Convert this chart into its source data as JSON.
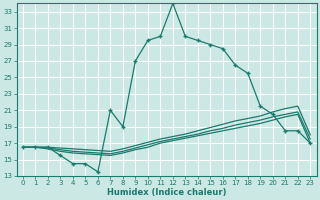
{
  "xlabel": "Humidex (Indice chaleur)",
  "bg_color": "#cce8e4",
  "grid_color": "#ffffff",
  "line_color": "#1a7a6e",
  "xlim": [
    -0.5,
    23.5
  ],
  "ylim": [
    13,
    34
  ],
  "yticks": [
    13,
    15,
    17,
    19,
    21,
    23,
    25,
    27,
    29,
    31,
    33
  ],
  "xticks": [
    0,
    1,
    2,
    3,
    4,
    5,
    6,
    7,
    8,
    9,
    10,
    11,
    12,
    13,
    14,
    15,
    16,
    17,
    18,
    19,
    20,
    21,
    22,
    23
  ],
  "line1_x": [
    0,
    1,
    2,
    3,
    4,
    5,
    6,
    7,
    8,
    9,
    10,
    11,
    12,
    13,
    14,
    15,
    16,
    17,
    18,
    19,
    20,
    21,
    22,
    23
  ],
  "line1_y": [
    16.5,
    16.5,
    16.3,
    16.0,
    15.8,
    15.7,
    15.6,
    15.5,
    15.8,
    16.2,
    16.5,
    17.0,
    17.3,
    17.6,
    17.9,
    18.2,
    18.5,
    18.8,
    19.1,
    19.4,
    19.8,
    20.2,
    20.5,
    17.0
  ],
  "line2_x": [
    0,
    1,
    2,
    3,
    4,
    5,
    6,
    7,
    8,
    9,
    10,
    11,
    12,
    13,
    14,
    15,
    16,
    17,
    18,
    19,
    20,
    21,
    22,
    23
  ],
  "line2_y": [
    16.5,
    16.5,
    16.4,
    16.2,
    16.0,
    15.9,
    15.8,
    15.7,
    16.0,
    16.4,
    16.8,
    17.2,
    17.5,
    17.8,
    18.1,
    18.5,
    18.8,
    19.2,
    19.5,
    19.8,
    20.2,
    20.5,
    20.8,
    17.5
  ],
  "line3_x": [
    0,
    1,
    2,
    3,
    4,
    5,
    6,
    7,
    8,
    9,
    10,
    11,
    12,
    13,
    14,
    15,
    16,
    17,
    18,
    19,
    20,
    21,
    22,
    23
  ],
  "line3_y": [
    16.5,
    16.5,
    16.5,
    16.4,
    16.3,
    16.2,
    16.1,
    16.0,
    16.3,
    16.7,
    17.1,
    17.5,
    17.8,
    18.1,
    18.5,
    18.9,
    19.3,
    19.7,
    20.0,
    20.3,
    20.8,
    21.2,
    21.5,
    18.0
  ],
  "main_x": [
    0,
    1,
    2,
    3,
    4,
    5,
    6,
    7,
    8,
    9,
    10,
    11,
    12,
    13,
    14,
    15,
    16,
    17,
    18,
    19,
    20,
    21,
    22,
    23
  ],
  "main_y": [
    16.5,
    16.5,
    16.5,
    15.5,
    14.5,
    14.5,
    13.5,
    21.0,
    19.0,
    27.0,
    29.5,
    30.0,
    34.0,
    30.0,
    29.5,
    29.0,
    28.5,
    26.5,
    25.5,
    21.5,
    20.5,
    18.5,
    18.5,
    17.0
  ]
}
